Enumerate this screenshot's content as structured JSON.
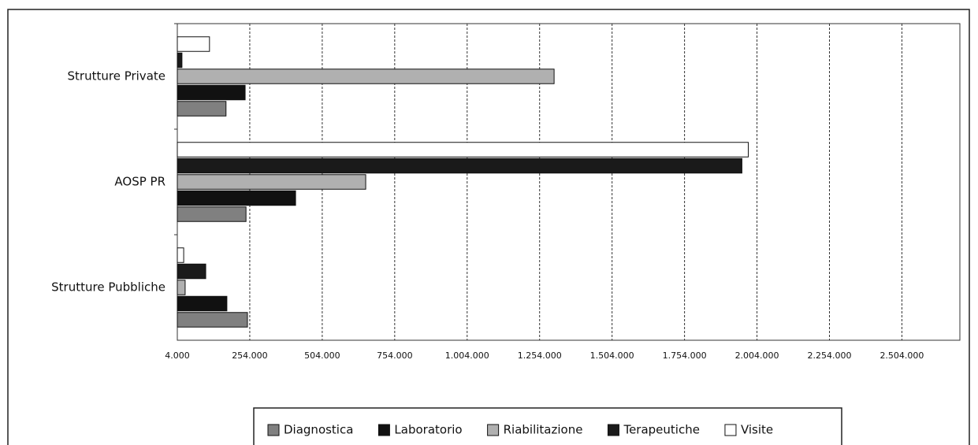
{
  "chart_data": {
    "type": "hbar",
    "categories": [
      "Strutture Pubbliche",
      "AOSP PR",
      "Strutture Private"
    ],
    "series": [
      {
        "name": "Diagnostica",
        "color": "#808080",
        "values": [
          246000,
          241000,
          172000
        ]
      },
      {
        "name": "Laboratorio",
        "color": "#111111",
        "values": [
          175000,
          412000,
          238000
        ]
      },
      {
        "name": "Riabilitazione",
        "color": "#b0b0b0",
        "values": [
          31000,
          654000,
          1304000
        ]
      },
      {
        "name": "Terapeutiche",
        "color": "#1a1a1a",
        "values": [
          102000,
          1952000,
          20000
        ]
      },
      {
        "name": "Visite",
        "color": "#ffffff",
        "values": [
          26000,
          1974000,
          115000
        ]
      }
    ],
    "xlim": [
      4000,
      2704000
    ],
    "xticks": [
      {
        "value": 4000,
        "label": "4.000"
      },
      {
        "value": 254000,
        "label": "254.000"
      },
      {
        "value": 504000,
        "label": "504.000"
      },
      {
        "value": 754000,
        "label": "754.000"
      },
      {
        "value": 1004000,
        "label": "1.004.000"
      },
      {
        "value": 1254000,
        "label": "1.254.000"
      },
      {
        "value": 1504000,
        "label": "1.504.000"
      },
      {
        "value": 1754000,
        "label": "1.754.000"
      },
      {
        "value": 2004000,
        "label": "2.004.000"
      },
      {
        "value": 2254000,
        "label": "2.254.000"
      },
      {
        "value": 2504000,
        "label": "2.504.000"
      }
    ],
    "grid": true,
    "legend": "bottom"
  }
}
